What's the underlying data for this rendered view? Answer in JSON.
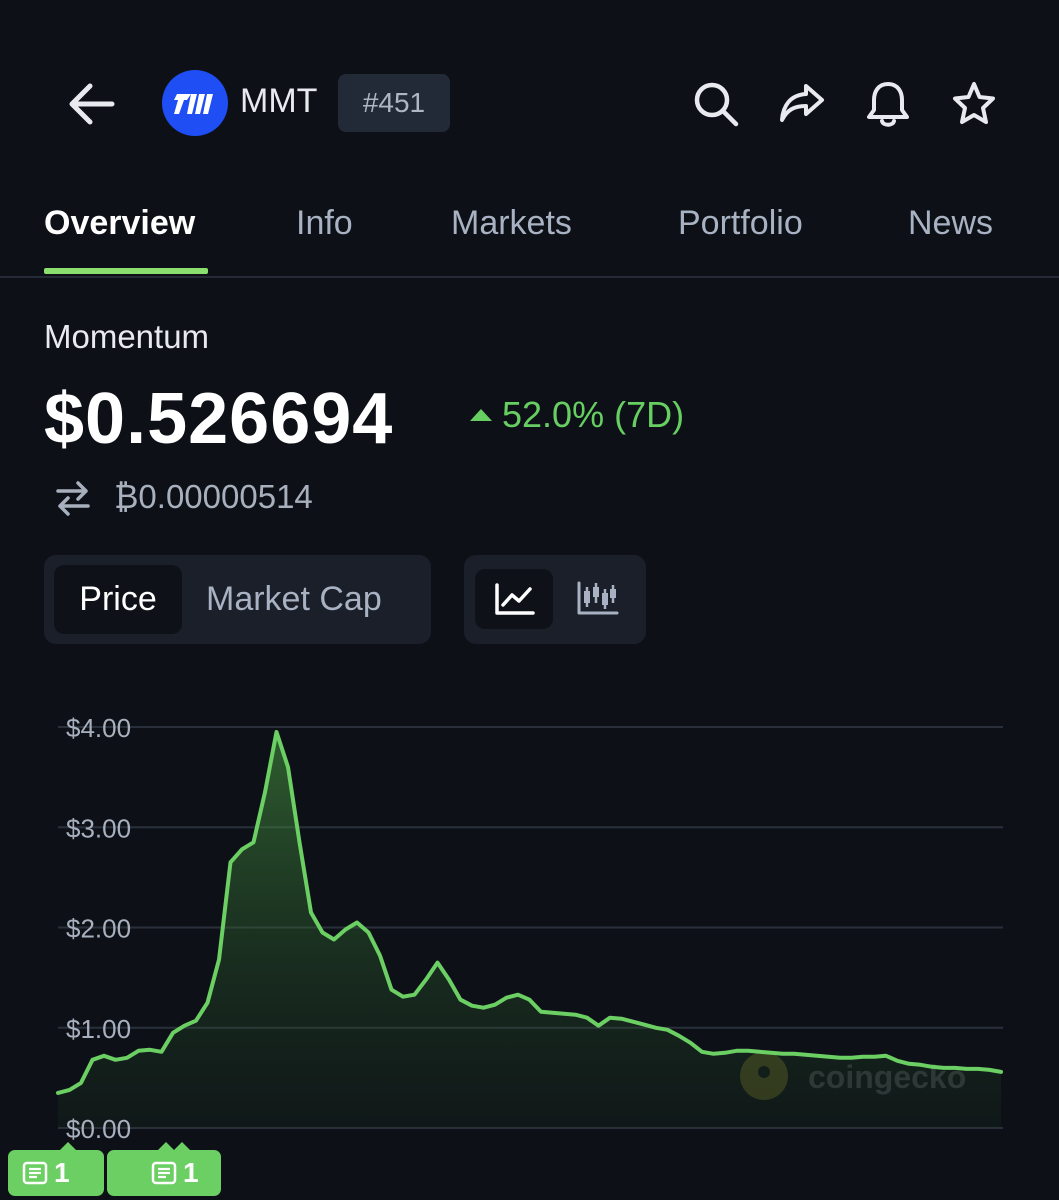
{
  "header": {
    "symbol": "MMT",
    "rank": "#451",
    "icons": [
      "back-arrow-icon",
      "coin-logo",
      "search-icon",
      "share-icon",
      "bell-icon",
      "star-icon"
    ]
  },
  "tabs": [
    "Overview",
    "Info",
    "Markets",
    "Portfolio",
    "News"
  ],
  "active_tab": "Overview",
  "coin": {
    "name": "Momentum",
    "price": "$0.526694",
    "change": "52.0% (7D)",
    "btc_price": "₿0.00000514"
  },
  "toggles": {
    "metric_options": [
      "Price",
      "Market Cap"
    ],
    "selected_metric": "Price",
    "chart_styles": [
      "line-chart-icon",
      "candlestick-icon"
    ],
    "selected_style": "line-chart-icon"
  },
  "news_badges": [
    {
      "count": "1"
    },
    {
      "count": "1"
    }
  ],
  "watermark": "coingecko",
  "colors": {
    "background": "#0d1117",
    "accent_green": "#67cf62",
    "tab_underline": "#8adf6e",
    "logo_blue": "#1f4ef5"
  },
  "chart_data": {
    "type": "area",
    "yticks": [
      "$4.00",
      "$3.00",
      "$2.00",
      "$1.00",
      "$0.00"
    ],
    "ylim": [
      0,
      4
    ],
    "grid": true,
    "series": [
      {
        "values": [
          0.35,
          0.38,
          0.45,
          0.68,
          0.72,
          0.68,
          0.7,
          0.77,
          0.78,
          0.76,
          0.95,
          1.02,
          1.07,
          1.25,
          1.68,
          2.65,
          2.78,
          2.85,
          3.35,
          3.95,
          3.6,
          2.85,
          2.15,
          1.95,
          1.88,
          1.98,
          2.05,
          1.95,
          1.72,
          1.38,
          1.31,
          1.33,
          1.48,
          1.65,
          1.48,
          1.28,
          1.22,
          1.2,
          1.23,
          1.3,
          1.33,
          1.28,
          1.16,
          1.15,
          1.14,
          1.13,
          1.1,
          1.02,
          1.1,
          1.09,
          1.06,
          1.03,
          1.0,
          0.98,
          0.92,
          0.85,
          0.76,
          0.74,
          0.75,
          0.77,
          0.77,
          0.76,
          0.75,
          0.74,
          0.74,
          0.73,
          0.72,
          0.71,
          0.7,
          0.7,
          0.71,
          0.71,
          0.72,
          0.67,
          0.64,
          0.63,
          0.61,
          0.6,
          0.6,
          0.59,
          0.59,
          0.58,
          0.56
        ]
      }
    ]
  }
}
